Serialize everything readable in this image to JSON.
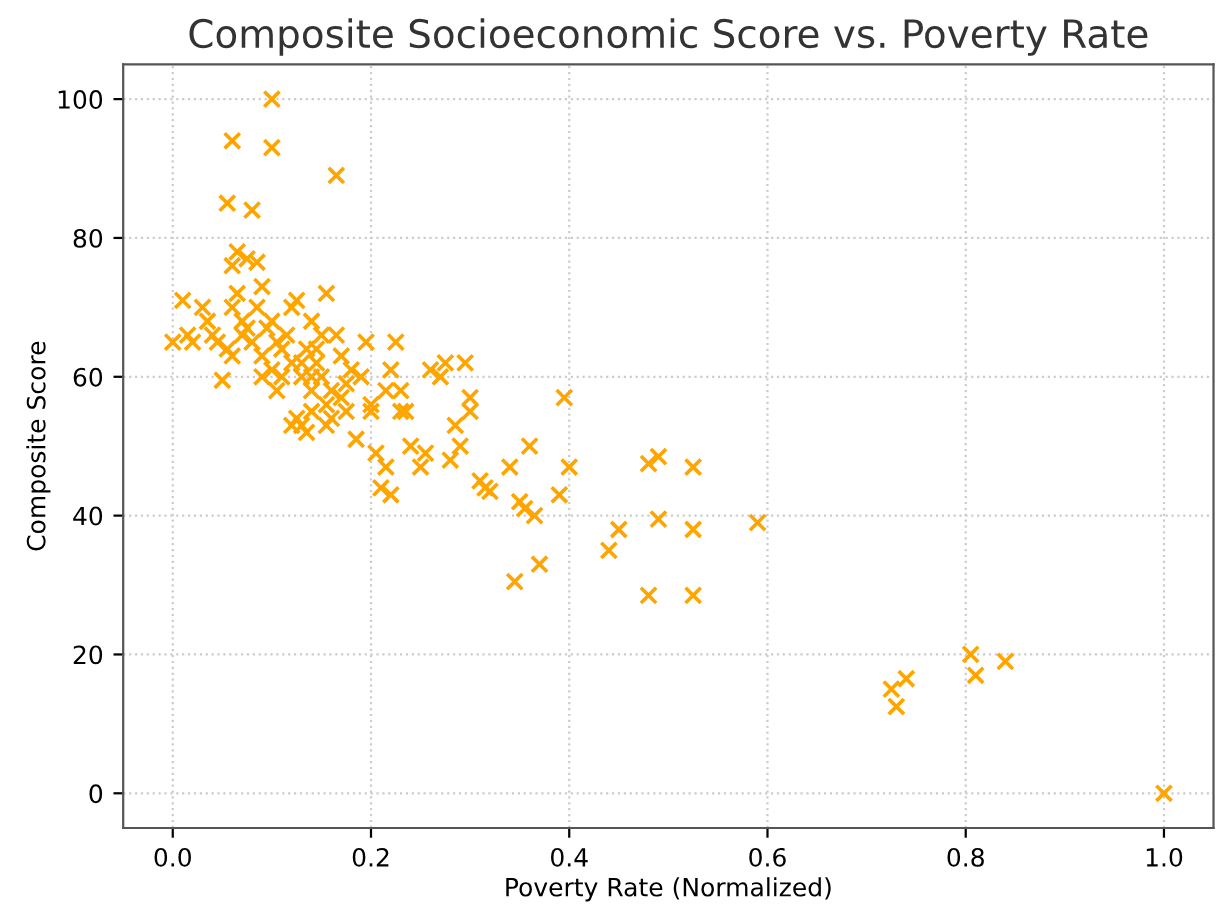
{
  "chart_data": {
    "type": "scatter",
    "title": "Composite Socioeconomic Score vs. Poverty Rate",
    "xlabel": "Poverty Rate (Normalized)",
    "ylabel": "Composite Score",
    "xlim": [
      -0.05,
      1.05
    ],
    "ylim": [
      -5,
      105
    ],
    "xticks": [
      {
        "value": 0,
        "label": "0.0"
      },
      {
        "value": 0.2,
        "label": "0.2"
      },
      {
        "value": 0.4,
        "label": "0.4"
      },
      {
        "value": 0.6,
        "label": "0.6"
      },
      {
        "value": 0.8,
        "label": "0.8"
      },
      {
        "value": 1,
        "label": "1.0"
      }
    ],
    "yticks": [
      0,
      20,
      40,
      60,
      80,
      100
    ],
    "grid": true,
    "marker": "cross",
    "series": [
      {
        "color": "#ffa500",
        "x": [
          0.1,
          0.1,
          0.06,
          0.165,
          0.055,
          0.08,
          0.075,
          0.065,
          0.06,
          0.085,
          0.0,
          0.01,
          0.015,
          0.02,
          0.03,
          0.035,
          0.04,
          0.045,
          0.05,
          0.055,
          0.06,
          0.065,
          0.07,
          0.075,
          0.08,
          0.085,
          0.09,
          0.09,
          0.095,
          0.1,
          0.1,
          0.105,
          0.11,
          0.115,
          0.12,
          0.125,
          0.125,
          0.13,
          0.13,
          0.135,
          0.14,
          0.14,
          0.145,
          0.15,
          0.155,
          0.155,
          0.16,
          0.165,
          0.17,
          0.175,
          0.18,
          0.185,
          0.19,
          0.195,
          0.2,
          0.205,
          0.21,
          0.215,
          0.22,
          0.22,
          0.225,
          0.23,
          0.235,
          0.24,
          0.25,
          0.255,
          0.26,
          0.27,
          0.275,
          0.28,
          0.285,
          0.29,
          0.295,
          0.3,
          0.3,
          0.31,
          0.315,
          0.32,
          0.34,
          0.345,
          0.35,
          0.355,
          0.36,
          0.365,
          0.37,
          0.39,
          0.395,
          0.4,
          0.44,
          0.45,
          0.48,
          0.48,
          0.49,
          0.49,
          0.525,
          0.525,
          0.525,
          0.59,
          0.725,
          0.73,
          0.74,
          0.805,
          0.81,
          0.84,
          1.0,
          0.12,
          0.13,
          0.14,
          0.15,
          0.16,
          0.12,
          0.135,
          0.11,
          0.17,
          0.2,
          0.215,
          0.23,
          0.06,
          0.07,
          0.09,
          0.14,
          0.145,
          0.175,
          0.155,
          0.105
        ],
        "values": [
          100,
          93,
          94,
          89,
          85,
          84,
          77,
          78,
          76,
          76.5,
          65,
          71,
          66,
          65,
          70,
          68,
          66,
          65,
          59.5,
          64,
          70,
          72,
          68,
          67,
          65,
          70,
          73,
          63,
          67,
          68,
          61,
          58,
          64,
          66,
          62,
          71,
          54,
          60,
          53,
          64,
          68,
          58,
          62,
          60,
          72,
          56,
          54,
          66,
          57,
          59,
          61,
          51,
          60,
          65,
          56,
          49,
          44,
          58,
          43,
          61,
          65,
          58,
          55,
          50,
          47,
          49,
          61,
          60,
          62,
          48,
          53,
          50,
          62,
          57,
          55,
          45,
          44,
          43.5,
          47,
          30.5,
          42,
          41,
          50,
          40,
          33,
          43,
          57,
          47,
          35,
          38,
          28.5,
          47.5,
          48.5,
          39.5,
          47,
          38,
          28.5,
          39,
          15,
          12.5,
          16.5,
          20,
          17,
          19,
          0,
          70,
          62,
          55,
          66,
          58,
          53,
          52,
          60,
          63,
          55,
          47,
          55,
          63,
          66,
          60,
          60,
          64,
          55,
          53,
          65
        ]
      }
    ]
  }
}
